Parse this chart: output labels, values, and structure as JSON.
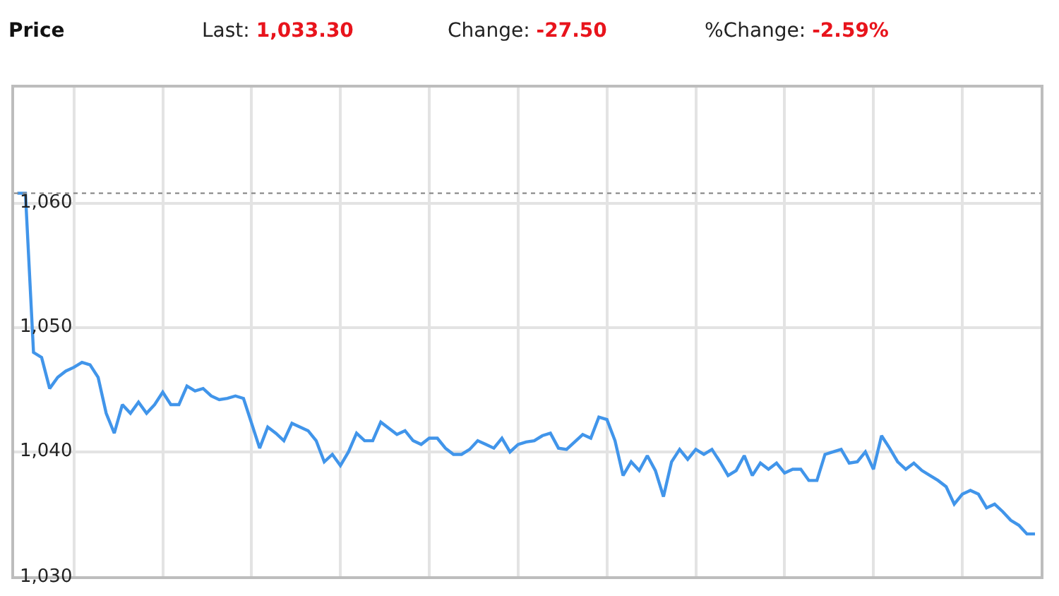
{
  "chart_data": {
    "type": "line",
    "title": "Price",
    "annotations": [
      "Last: 1,033.30",
      "Change: -27.50",
      "%Change: -2.59%"
    ],
    "series": [
      {
        "color": "#4195ea",
        "values": [
          1060.8,
          1060.8,
          1048.0,
          1047.6,
          1045.1,
          1046.0,
          1046.5,
          1046.8,
          1047.2,
          1047.0,
          1046.0,
          1043.1,
          1041.5,
          1043.8,
          1043.1,
          1044.0,
          1043.1,
          1043.8,
          1044.8,
          1043.8,
          1043.8,
          1045.3,
          1044.9,
          1045.1,
          1044.5,
          1044.2,
          1044.3,
          1044.5,
          1044.3,
          1042.3,
          1040.3,
          1042.0,
          1041.5,
          1040.9,
          1042.3,
          1042.0,
          1041.7,
          1040.9,
          1039.2,
          1039.8,
          1038.9,
          1040.0,
          1041.5,
          1040.9,
          1040.9,
          1042.4,
          1041.9,
          1041.4,
          1041.7,
          1040.9,
          1040.6,
          1041.1,
          1041.1,
          1040.3,
          1039.8,
          1039.8,
          1040.2,
          1040.9,
          1040.6,
          1040.3,
          1041.1,
          1040.0,
          1040.6,
          1040.8,
          1040.9,
          1041.3,
          1041.5,
          1040.3,
          1040.2,
          1040.8,
          1041.4,
          1041.1,
          1042.8,
          1042.6,
          1040.9,
          1038.1,
          1039.2,
          1038.5,
          1039.7,
          1038.5,
          1036.4,
          1039.2,
          1040.2,
          1039.4,
          1040.2,
          1039.8,
          1040.2,
          1039.2,
          1038.1,
          1038.5,
          1039.7,
          1038.1,
          1039.1,
          1038.6,
          1039.1,
          1038.3,
          1038.6,
          1038.6,
          1037.7,
          1037.7,
          1039.8,
          1040.0,
          1040.2,
          1039.1,
          1039.2,
          1040.0,
          1038.6,
          1041.3,
          1040.3,
          1039.2,
          1038.6,
          1039.1,
          1038.5,
          1038.1,
          1037.7,
          1037.2,
          1035.8,
          1036.6,
          1036.9,
          1036.6,
          1035.5,
          1035.8,
          1035.2,
          1034.5,
          1034.1,
          1033.4,
          1033.4
        ]
      }
    ],
    "categories": [
      null,
      null,
      null,
      null,
      null,
      null,
      null,
      null,
      null,
      null,
      null,
      null,
      null,
      null,
      null,
      null,
      null,
      null,
      null,
      null,
      null,
      null,
      null,
      null,
      null,
      null,
      null,
      null,
      null,
      null,
      null,
      null,
      null,
      null,
      null,
      null,
      null,
      null,
      null,
      null,
      null,
      null,
      null,
      null,
      null,
      null,
      null,
      null,
      null,
      null,
      null,
      null,
      null,
      null,
      null,
      null,
      null,
      null,
      null,
      null,
      null,
      null,
      null,
      null,
      null,
      null,
      null,
      null,
      null,
      null,
      null,
      null,
      null,
      null,
      null,
      null,
      null,
      null,
      null,
      null,
      null,
      null,
      null,
      null,
      null,
      null,
      null,
      null,
      null,
      null,
      null,
      null,
      null,
      null,
      null,
      null,
      null,
      null,
      null,
      null,
      null,
      null,
      null,
      null,
      null,
      null,
      null,
      null,
      null,
      null,
      null,
      null,
      null,
      null,
      null,
      null,
      null,
      null,
      null,
      null,
      null,
      null,
      null,
      null,
      null,
      null,
      null
    ],
    "ylim": [
      1030,
      1069.3
    ],
    "yticks": [
      {
        "value": 1030,
        "label": "1,030"
      },
      {
        "value": 1040,
        "label": "1,040"
      },
      {
        "value": 1050,
        "label": "1,050"
      },
      {
        "value": 1060,
        "label": "1,060"
      }
    ],
    "tick_labels": "y",
    "ref_lines": [
      {
        "axis": "y",
        "value": 1060.8,
        "color": "#8c8c8c",
        "line_style": "dotted"
      }
    ],
    "grid": true,
    "line_style": "solid",
    "marker": "none"
  }
}
